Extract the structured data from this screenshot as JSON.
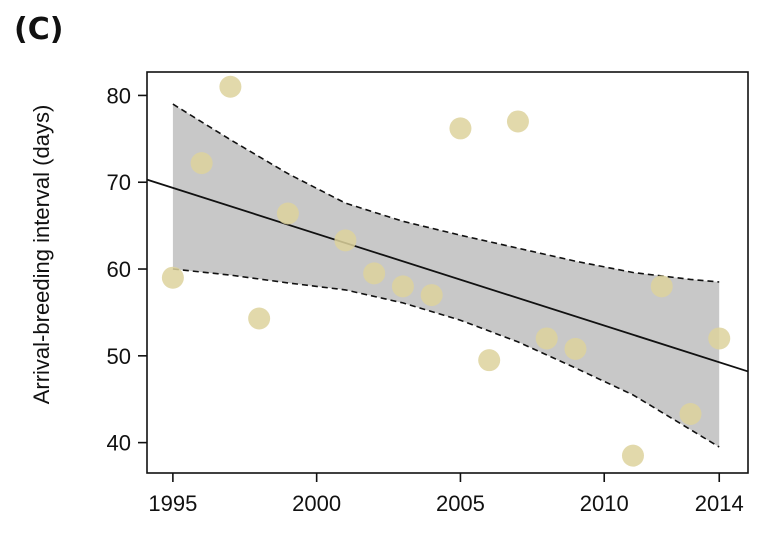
{
  "panel_label": "(C)",
  "chart_data": {
    "type": "scatter",
    "title": "",
    "xlabel": "",
    "ylabel": "Arrival-breeding interval (days)",
    "xlim": [
      1994.1,
      2015.0
    ],
    "ylim": [
      36.5,
      82.7
    ],
    "x_ticks": [
      1995,
      2000,
      2005,
      2010,
      2014
    ],
    "y_ticks": [
      40,
      50,
      60,
      70,
      80
    ],
    "grid": false,
    "legend": "none",
    "colors": {
      "points": "#ddd29c",
      "points_opacity": 0.85,
      "band": "#c8c8c8",
      "line": "#111111"
    },
    "points": [
      {
        "x": 1995,
        "y": 59.0
      },
      {
        "x": 1996,
        "y": 72.2
      },
      {
        "x": 1997,
        "y": 81.0
      },
      {
        "x": 1998,
        "y": 54.3
      },
      {
        "x": 1999,
        "y": 66.4
      },
      {
        "x": 2001,
        "y": 63.3
      },
      {
        "x": 2002,
        "y": 59.5
      },
      {
        "x": 2003,
        "y": 58.0
      },
      {
        "x": 2004,
        "y": 57.0
      },
      {
        "x": 2005,
        "y": 76.2
      },
      {
        "x": 2006,
        "y": 49.5
      },
      {
        "x": 2007,
        "y": 77.0
      },
      {
        "x": 2008,
        "y": 52.0
      },
      {
        "x": 2009,
        "y": 50.8
      },
      {
        "x": 2011,
        "y": 38.5
      },
      {
        "x": 2012,
        "y": 58.0
      },
      {
        "x": 2013,
        "y": 43.3
      },
      {
        "x": 2014,
        "y": 52.0
      }
    ],
    "regression_line": {
      "x": [
        1994.1,
        2015.0
      ],
      "y": [
        70.3,
        48.2
      ]
    },
    "confidence_band": {
      "x": [
        1995,
        1997,
        1999,
        2001,
        2003,
        2005,
        2007,
        2009,
        2011,
        2013,
        2014
      ],
      "upper": [
        79.0,
        74.9,
        71.0,
        67.6,
        65.5,
        63.9,
        62.4,
        60.9,
        59.6,
        58.8,
        58.5
      ],
      "lower": [
        60.0,
        59.3,
        58.4,
        57.6,
        56.1,
        54.1,
        51.6,
        48.6,
        45.5,
        41.5,
        39.5
      ]
    }
  }
}
